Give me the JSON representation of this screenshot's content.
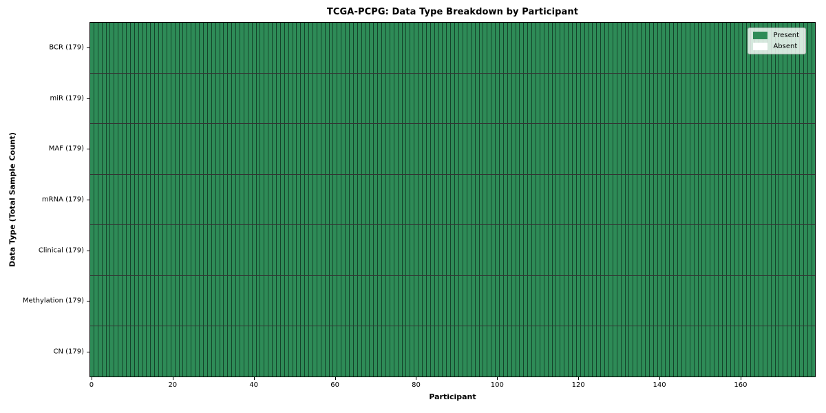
{
  "title": "TCGA-PCPG: Data Type Breakdown by Participant",
  "axes": {
    "xlabel": "Participant",
    "ylabel": "Data Type (Total Sample Count)"
  },
  "legend": {
    "items": [
      {
        "label": "Present",
        "color": "#2e8b57"
      },
      {
        "label": "Absent",
        "color": "#ffffff"
      }
    ]
  },
  "chart_data": {
    "type": "heatmap",
    "title": "TCGA-PCPG: Data Type Breakdown by Participant",
    "xlabel": "Participant",
    "ylabel": "Data Type (Total Sample Count)",
    "legend_position": "upper right",
    "n_participants": 179,
    "x_axis": {
      "min": 0,
      "max": 178,
      "tick_values": [
        0,
        20,
        40,
        60,
        80,
        100,
        120,
        140,
        160
      ]
    },
    "y_categories": [
      "BCR (179)",
      "miR (179)",
      "MAF (179)",
      "mRNA (179)",
      "Clinical (179)",
      "Methylation (179)",
      "CN (179)"
    ],
    "rows": [
      {
        "label": "BCR (179)",
        "data_type": "BCR",
        "total_sample_count": 179,
        "present_count": 179,
        "absent_count": 0
      },
      {
        "label": "miR (179)",
        "data_type": "miR",
        "total_sample_count": 179,
        "present_count": 179,
        "absent_count": 0
      },
      {
        "label": "MAF (179)",
        "data_type": "MAF",
        "total_sample_count": 179,
        "present_count": 179,
        "absent_count": 0
      },
      {
        "label": "mRNA (179)",
        "data_type": "mRNA",
        "total_sample_count": 179,
        "present_count": 179,
        "absent_count": 0
      },
      {
        "label": "Clinical (179)",
        "data_type": "Clinical",
        "total_sample_count": 179,
        "present_count": 179,
        "absent_count": 0
      },
      {
        "label": "Methylation (179)",
        "data_type": "Methylation",
        "total_sample_count": 179,
        "present_count": 179,
        "absent_count": 0
      },
      {
        "label": "CN (179)",
        "data_type": "CN",
        "total_sample_count": 179,
        "present_count": 179,
        "absent_count": 0
      }
    ],
    "cell_states": [
      "Present",
      "Absent"
    ],
    "colors": {
      "present": "#2e8b57",
      "absent": "#ffffff",
      "cell_edge": "#000000"
    }
  }
}
